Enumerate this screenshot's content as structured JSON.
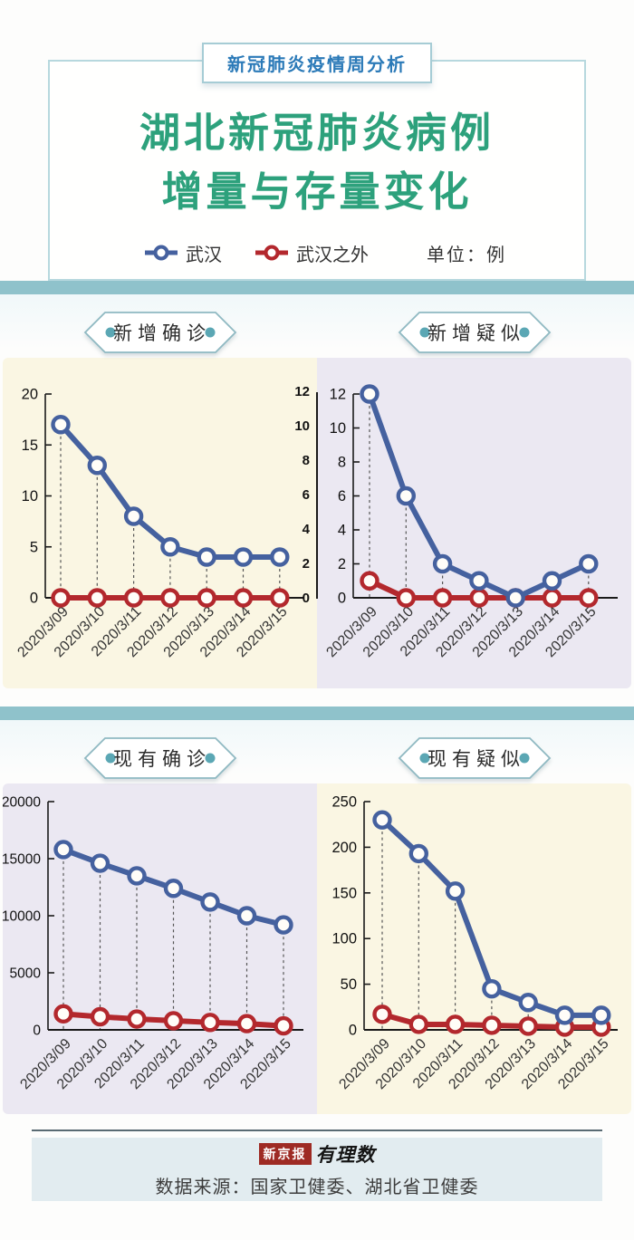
{
  "header": {
    "badge": "新冠肺炎疫情周分析",
    "title_line1": "湖北新冠肺炎病例",
    "title_line2": "增量与存量变化",
    "legend": [
      {
        "label": "武汉",
        "color": "#45619f"
      },
      {
        "label": "武汉之外",
        "color": "#b3282d"
      }
    ],
    "unit_label": "单位：例"
  },
  "colors": {
    "title_green": "#2da17c",
    "badge_blue": "#2b7ab8",
    "teal_bar": "#8fc2cb",
    "cream_bg": "#faf6e3",
    "lavender_bg": "#ebe8f2",
    "footer_bg": "#e2ecf0",
    "wuhan_blue": "#45619f",
    "non_wuhan_red": "#b3282d"
  },
  "chart_data": [
    {
      "type": "line",
      "title": "新增确诊",
      "background": "#faf6e3",
      "x": [
        "2020/3/09",
        "2020/3/10",
        "2020/3/11",
        "2020/3/12",
        "2020/3/13",
        "2020/3/14",
        "2020/3/15"
      ],
      "ylim": [
        0,
        20
      ],
      "yticks": [
        0,
        5,
        10,
        15,
        20
      ],
      "grid": false,
      "series": [
        {
          "name": "武汉",
          "color": "#45619f",
          "values": [
            17,
            13,
            8,
            5,
            4,
            4,
            4
          ]
        },
        {
          "name": "武汉之外",
          "color": "#b3282d",
          "values": [
            0,
            0,
            0,
            0,
            0,
            0,
            0
          ]
        }
      ]
    },
    {
      "type": "line",
      "title": "新增疑似",
      "background": "#ebe8f2",
      "duplicate_left_axis": true,
      "x": [
        "2020/3/09",
        "2020/3/10",
        "2020/3/11",
        "2020/3/12",
        "2020/3/13",
        "2020/3/14",
        "2020/3/15"
      ],
      "ylim": [
        0,
        12
      ],
      "yticks": [
        0,
        2,
        4,
        6,
        8,
        10,
        12
      ],
      "grid": false,
      "series": [
        {
          "name": "武汉",
          "color": "#45619f",
          "values": [
            12,
            6,
            2,
            1,
            0,
            1,
            2
          ]
        },
        {
          "name": "武汉之外",
          "color": "#b3282d",
          "values": [
            1,
            0,
            0,
            0,
            0,
            0,
            0
          ]
        }
      ]
    },
    {
      "type": "line",
      "title": "现有确诊",
      "background": "#ebe8f2",
      "x": [
        "2020/3/09",
        "2020/3/10",
        "2020/3/11",
        "2020/3/12",
        "2020/3/13",
        "2020/3/14",
        "2020/3/15"
      ],
      "ylim": [
        0,
        20000
      ],
      "yticks": [
        0,
        5000,
        10000,
        15000,
        20000
      ],
      "grid": false,
      "series": [
        {
          "name": "武汉",
          "color": "#45619f",
          "values": [
            15800,
            14600,
            13500,
            12400,
            11200,
            10000,
            9200
          ]
        },
        {
          "name": "武汉之外",
          "color": "#b3282d",
          "values": [
            1400,
            1150,
            950,
            800,
            650,
            550,
            350
          ]
        }
      ]
    },
    {
      "type": "line",
      "title": "现有疑似",
      "background": "#faf6e3",
      "x": [
        "2020/3/09",
        "2020/3/10",
        "2020/3/11",
        "2020/3/12",
        "2020/3/13",
        "2020/3/14",
        "2020/3/15"
      ],
      "ylim": [
        0,
        250
      ],
      "yticks": [
        0,
        50,
        100,
        150,
        200,
        250
      ],
      "grid": false,
      "series": [
        {
          "name": "武汉",
          "color": "#45619f",
          "values": [
            230,
            193,
            152,
            45,
            30,
            16,
            16
          ]
        },
        {
          "name": "武汉之外",
          "color": "#b3282d",
          "values": [
            17,
            6,
            6,
            5,
            4,
            3,
            3
          ]
        }
      ]
    }
  ],
  "footer": {
    "logo_primary": "新京报",
    "logo_secondary": "有理数",
    "source": "数据来源：国家卫健委、湖北省卫健委"
  }
}
